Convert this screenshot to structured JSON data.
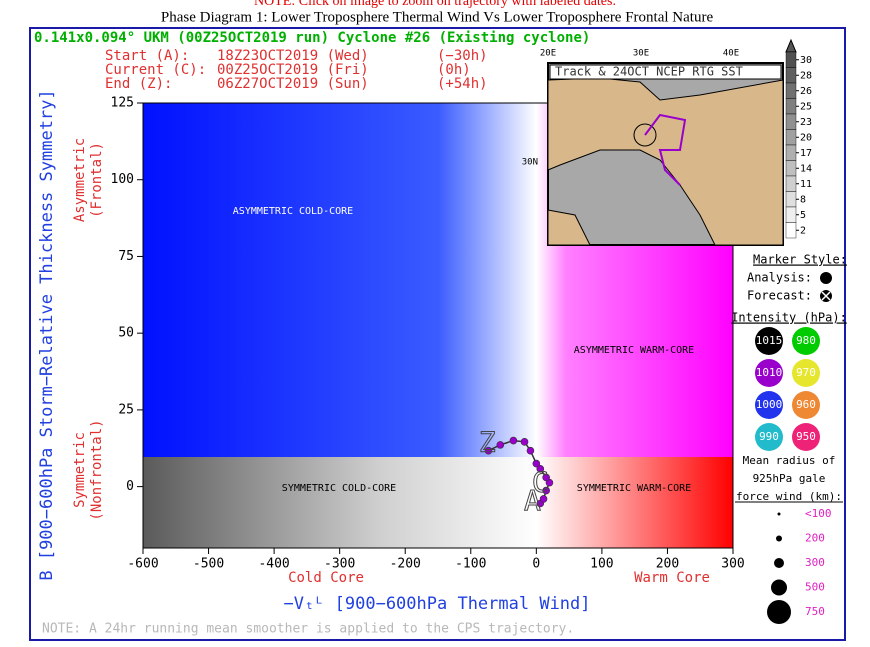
{
  "top_note": "NOTE: Click on image to zoom on trajectory with labeled dates.",
  "chart_data": {
    "type": "line",
    "title": "Phase Diagram 1: Lower Troposphere Thermal Wind Vs Lower Troposphere Frontal Nature",
    "subtitle": "0.141x0.094° UKM (00Z25OCT2019 run) Cyclone #26 (Existing cyclone)",
    "info": [
      [
        "Start (A):",
        "18Z23OCT2019 (Wed)",
        "(−30h)"
      ],
      [
        "Current (C):",
        "00Z25OCT2019 (Fri)",
        "(0h)"
      ],
      [
        "End (Z):",
        "06Z27OCT2019 (Sun)",
        "(+54h)"
      ]
    ],
    "xlabel": "−Vₜᴸ [900−600hPa Thermal Wind]",
    "ylabel": "B [900−600hPa Storm−Relative Thickness Symmetry]",
    "x_side_labels": [
      "Cold Core",
      "Warm Core"
    ],
    "y_side_labels": [
      [
        "Asymmetric",
        "(Frontal)"
      ],
      [
        "Symmetric",
        "(Nonfrontal)"
      ]
    ],
    "regions": [
      "ASYMMETRIC COLD-CORE",
      "ASYMMETRIC WARM-CORE",
      "SYMMETRIC COLD-CORE",
      "SYMMETRIC WARM-CORE"
    ],
    "x": [
      6,
      11,
      15,
      20,
      15,
      6,
      0,
      -9,
      -18,
      -35,
      -55,
      -73
    ],
    "values": [
      -5.5,
      -4,
      -1.3,
      1.3,
      3,
      5.8,
      7.5,
      11.7,
      14.6,
      15,
      13.6,
      11.7
    ],
    "color": "#9900cc",
    "track_labels": [
      {
        "label": "A",
        "x": -6,
        "y": -5
      },
      {
        "label": "C",
        "x": 6,
        "y": 1
      },
      {
        "label": "Z",
        "x": -75,
        "y": 14
      }
    ],
    "xlim": [
      -600,
      300
    ],
    "xticks": [
      -600,
      -500,
      -400,
      -300,
      -200,
      -100,
      0,
      100,
      200,
      300
    ],
    "ylim": [
      -20,
      125
    ],
    "yticks": [
      0,
      25,
      50,
      75,
      100,
      125
    ],
    "map": {
      "title": "Track & 24OCT NCEP RTG SST",
      "lon_labels": [
        "20E",
        "30E",
        "40E"
      ],
      "lat_labels": [
        "30N"
      ],
      "colorbar_ticks": [
        30,
        28,
        26,
        25,
        23,
        20,
        17,
        14,
        11,
        8,
        5,
        2
      ]
    },
    "marker_style": {
      "title": "Marker Style:",
      "items": [
        "Analysis:",
        "Forecast:"
      ]
    },
    "intensity_legend": {
      "title": "Intensity (hPa):",
      "values": [
        1015,
        980,
        1010,
        970,
        1000,
        960,
        990,
        950
      ],
      "colors": [
        "#000000",
        "#00cc00",
        "#9900cc",
        "#e6e62e",
        "#2233ee",
        "#ee8833",
        "#22bbcc",
        "#ee2277"
      ]
    },
    "radius_legend": {
      "title": [
        "Mean radius of",
        "925hPa gale",
        "force wind (km):"
      ],
      "labels": [
        "<100",
        "200",
        "300",
        "500",
        "750"
      ]
    },
    "footnote": "NOTE:  A 24hr running mean smoother is applied to the CPS trajectory."
  }
}
